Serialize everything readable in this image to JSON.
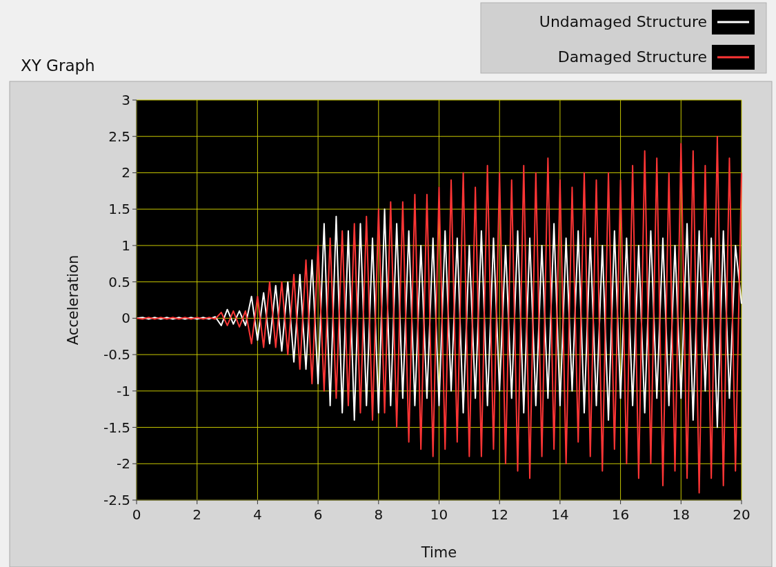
{
  "chart_data": {
    "type": "line",
    "title": "XY Graph",
    "xlabel": "Time",
    "ylabel": "Acceleration",
    "x": [
      0,
      0.2,
      0.4,
      0.6,
      0.8,
      1,
      1.2,
      1.4,
      1.6,
      1.8,
      2,
      2.2,
      2.4,
      2.6,
      2.8,
      3,
      3.2,
      3.4,
      3.6,
      3.8,
      4,
      4.2,
      4.4,
      4.6,
      4.8,
      5,
      5.2,
      5.4,
      5.6,
      5.8,
      6,
      6.2,
      6.4,
      6.6,
      6.8,
      7,
      7.2,
      7.4,
      7.6,
      7.8,
      8,
      8.2,
      8.4,
      8.6,
      8.8,
      9,
      9.2,
      9.4,
      9.6,
      9.8,
      10,
      10.2,
      10.4,
      10.6,
      10.8,
      11,
      11.2,
      11.4,
      11.6,
      11.8,
      12,
      12.2,
      12.4,
      12.6,
      12.8,
      13,
      13.2,
      13.4,
      13.6,
      13.8,
      14,
      14.2,
      14.4,
      14.6,
      14.8,
      15,
      15.2,
      15.4,
      15.6,
      15.8,
      16,
      16.2,
      16.4,
      16.6,
      16.8,
      17,
      17.2,
      17.4,
      17.6,
      17.8,
      18,
      18.2,
      18.4,
      18.6,
      18.8,
      19,
      19.2,
      19.4,
      19.6,
      19.8,
      20
    ],
    "series": [
      {
        "name": "Undamaged Structure",
        "color": "#ffffff",
        "values": [
          0,
          0.01,
          -0.01,
          0.01,
          -0.01,
          0.01,
          -0.01,
          0.01,
          -0.01,
          0.01,
          -0.01,
          0.01,
          -0.01,
          0.02,
          -0.1,
          0.12,
          -0.08,
          0.1,
          -0.1,
          0.3,
          -0.3,
          0.35,
          -0.35,
          0.45,
          -0.45,
          0.5,
          -0.6,
          0.6,
          -0.7,
          0.8,
          -0.9,
          1.3,
          -1.2,
          1.4,
          -1.3,
          1.2,
          -1.4,
          1.3,
          -1.2,
          1.1,
          -1.3,
          1.5,
          -1.2,
          1.3,
          -1.1,
          1.2,
          -1.2,
          1.0,
          -1.1,
          1.1,
          -1.2,
          1.2,
          -1.0,
          1.1,
          -1.3,
          1.0,
          -1.1,
          1.2,
          -1.2,
          1.1,
          -1.0,
          1.0,
          -1.1,
          1.2,
          -1.3,
          1.1,
          -1.2,
          1.0,
          -1.1,
          1.3,
          -1.2,
          1.1,
          -1.0,
          1.2,
          -1.3,
          1.1,
          -1.2,
          1.0,
          -1.4,
          1.2,
          -1.1,
          1.1,
          -1.2,
          1.0,
          -1.3,
          1.2,
          -1.1,
          1.1,
          -1.2,
          1.0,
          -1.1,
          1.3,
          -1.4,
          1.2,
          -1.0,
          1.1,
          -1.5,
          1.2,
          -1.1,
          1.0,
          0.2
        ]
      },
      {
        "name": "Damaged Structure",
        "color": "#ff3535",
        "values": [
          0,
          -0.01,
          0.01,
          -0.01,
          0.01,
          -0.01,
          0.01,
          -0.01,
          0.01,
          -0.01,
          0.01,
          -0.01,
          0.01,
          -0.01,
          0.08,
          -0.1,
          0.1,
          -0.12,
          0.1,
          -0.35,
          0.3,
          -0.4,
          0.5,
          -0.4,
          0.5,
          -0.5,
          0.6,
          -0.7,
          0.8,
          -0.9,
          1.0,
          -1.0,
          1.1,
          -1.1,
          1.2,
          -1.2,
          1.3,
          -1.3,
          1.4,
          -1.4,
          1.5,
          -1.3,
          1.6,
          -1.5,
          1.6,
          -1.7,
          1.7,
          -1.8,
          1.7,
          -1.9,
          1.8,
          -1.8,
          1.9,
          -1.7,
          2.0,
          -1.9,
          1.8,
          -1.9,
          2.1,
          -1.8,
          2.0,
          -2.0,
          1.9,
          -2.1,
          2.1,
          -2.2,
          2.0,
          -1.9,
          2.2,
          -1.8,
          1.9,
          -2.0,
          1.8,
          -1.7,
          2.0,
          -1.9,
          1.9,
          -2.1,
          2.0,
          -1.8,
          1.9,
          -2.0,
          2.1,
          -2.2,
          2.3,
          -2.0,
          2.2,
          -2.3,
          2.0,
          -2.1,
          2.4,
          -2.2,
          2.3,
          -2.4,
          2.1,
          -2.2,
          2.5,
          -2.3,
          2.2,
          -2.1,
          2.0
        ]
      }
    ],
    "xlim": [
      0,
      20
    ],
    "xticks": [
      0,
      2,
      4,
      6,
      8,
      10,
      12,
      14,
      16,
      18,
      20
    ],
    "ylim": [
      -2.5,
      3
    ],
    "yticks": [
      -2.5,
      -2,
      -1.5,
      -1,
      -0.5,
      0,
      0.5,
      1,
      1.5,
      2,
      2.5,
      3
    ],
    "grid": true,
    "legend": "top right",
    "marker": "none",
    "line_style": "solid"
  }
}
